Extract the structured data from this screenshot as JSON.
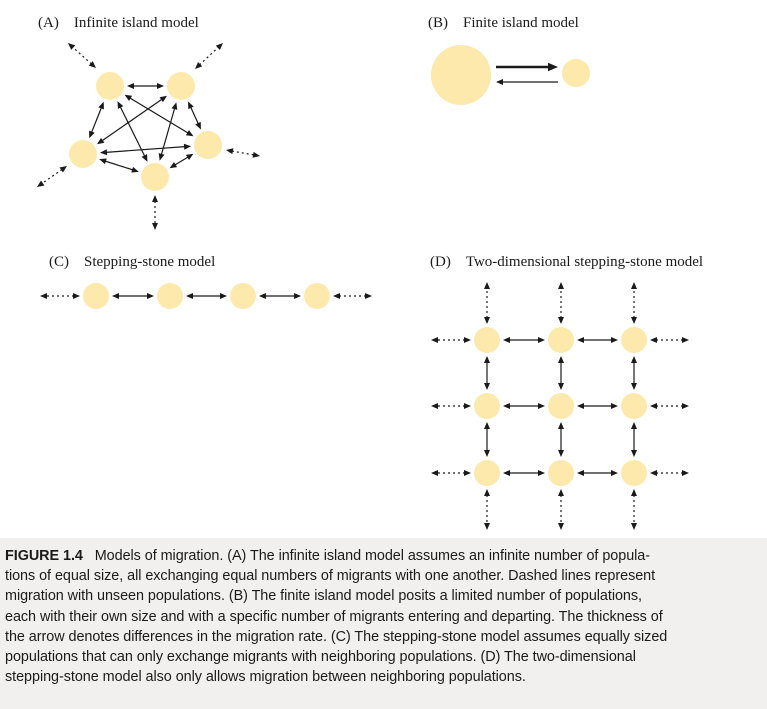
{
  "panels": {
    "a": {
      "title": "(A) Infinite island model"
    },
    "b": {
      "title": "(B) Finite island model"
    },
    "c": {
      "title": "(C) Stepping-stone model"
    },
    "d": {
      "title": "(D) Two-dimensional stepping-stone model"
    }
  },
  "caption": {
    "label": "FIGURE 1.4",
    "lines": [
      "Models of migration. (A) The infinite island model assumes an infinite number of popula-",
      "tions of equal size, all exchanging equal numbers of migrants with one another. Dashed lines represent",
      "migration with unseen populations. (B) The finite island model posits a limited number of populations,",
      "each with their own size and with a specific number of migrants entering and departing. The thickness of",
      "the arrow denotes differences in the migration rate. (C) The stepping-stone model assumes equally sized",
      "populations that can only exchange migrants with neighboring populations. (D) The two-dimensional",
      "stepping-stone model also only allows migration between neighboring populations."
    ]
  },
  "colors": {
    "population_fill": "#fde9ab",
    "ink": "#1a1a1a",
    "caption_background": "#f1f0ee"
  }
}
